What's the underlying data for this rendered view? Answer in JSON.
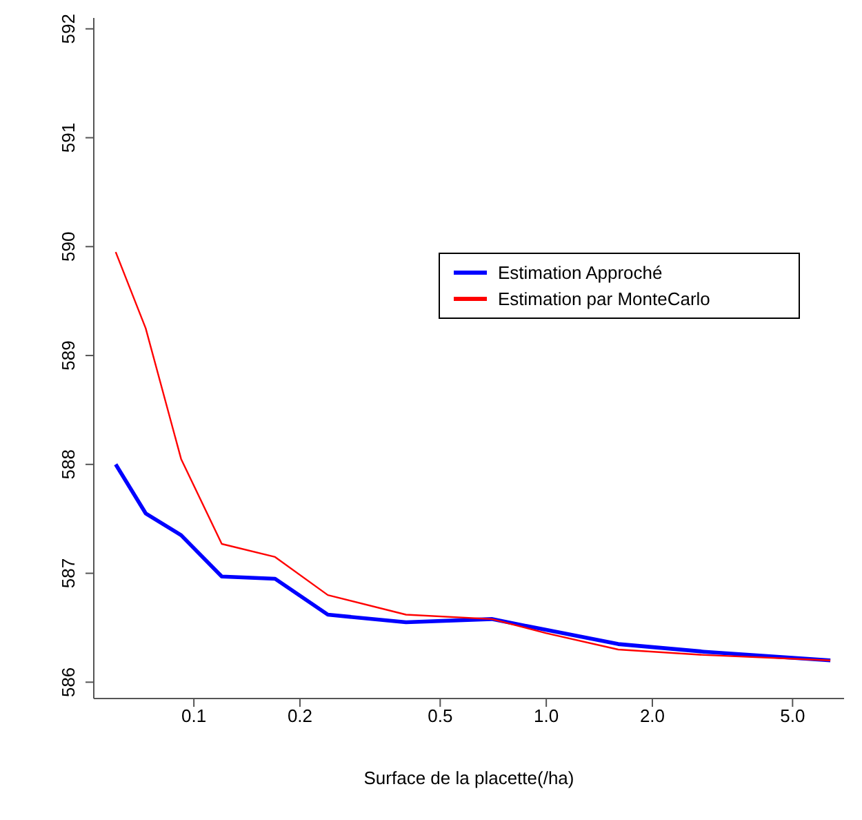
{
  "chart_data": {
    "type": "line",
    "xlabel": "Surface de la placette(/ha)",
    "x": [
      0.06,
      0.073,
      0.092,
      0.12,
      0.17,
      0.24,
      0.4,
      0.7,
      1.0,
      1.6,
      2.8,
      6.4
    ],
    "series": [
      {
        "name": "Estimation Approché",
        "color": "#0000ff",
        "values": [
          588.0,
          587.55,
          587.35,
          586.97,
          586.95,
          586.62,
          586.55,
          586.58,
          586.48,
          586.35,
          586.28,
          586.2
        ]
      },
      {
        "name": "Estimation par MonteCarlo",
        "color": "#ff0000",
        "values": [
          589.95,
          589.25,
          588.05,
          587.27,
          587.15,
          586.8,
          586.62,
          586.58,
          586.45,
          586.3,
          586.25,
          586.2
        ]
      }
    ],
    "log": "x",
    "xlim": [
      0.052,
      7.0
    ],
    "xticks": [
      {
        "value": 0.1,
        "label": "0.1"
      },
      {
        "value": 0.2,
        "label": "0.2"
      },
      {
        "value": 0.5,
        "label": "0.5"
      },
      {
        "value": 1,
        "label": "1.0"
      },
      {
        "value": 2,
        "label": "2.0"
      },
      {
        "value": 5,
        "label": "5.0"
      }
    ],
    "ylim": [
      585.85,
      592.1
    ],
    "yticks": [
      586,
      587,
      588,
      589,
      590,
      591,
      592
    ],
    "grid": false,
    "legend": "right",
    "marker": "none",
    "line_style": "solid"
  }
}
